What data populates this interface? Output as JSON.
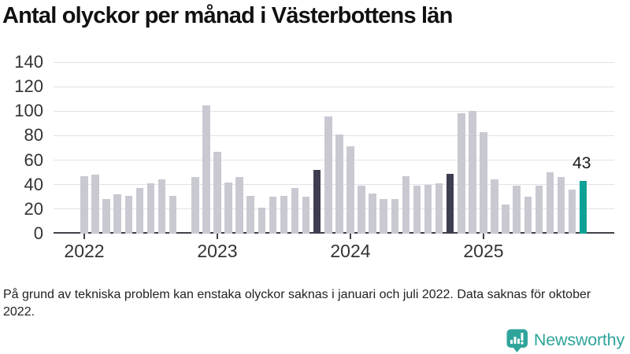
{
  "title": "Antal olyckor per månad i Västerbottens län",
  "footnote": "På grund av tekniska problem kan enstaka olyckor saknas i januari och juli 2022. Data saknas för oktober 2022.",
  "logo": {
    "name": "Newsworthy"
  },
  "colors": {
    "bar": "#c9c9d2",
    "bar_highlight": "#3e3e51",
    "bar_current": "#0ba195",
    "axis": "#3f4347",
    "gridline": "#e2e2e7",
    "text": "#1a1a1a",
    "logo_teal": "#2fa49b"
  },
  "chart_data": {
    "type": "bar",
    "title": "Antal olyckor per månad i Västerbottens län",
    "xlabel": "",
    "ylabel": "",
    "ylim": [
      0,
      140
    ],
    "y_ticks": [
      0,
      20,
      40,
      60,
      80,
      100,
      120,
      140
    ],
    "grid": "horizontal",
    "x_year_ticks": [
      "2022",
      "2023",
      "2024",
      "2025"
    ],
    "bar_label": {
      "text": "43",
      "month": "2025-10"
    },
    "months": [
      {
        "m": "2022-01",
        "v": 47,
        "c": "normal"
      },
      {
        "m": "2022-02",
        "v": 48,
        "c": "normal"
      },
      {
        "m": "2022-03",
        "v": 28,
        "c": "normal"
      },
      {
        "m": "2022-04",
        "v": 32,
        "c": "normal"
      },
      {
        "m": "2022-05",
        "v": 31,
        "c": "normal"
      },
      {
        "m": "2022-06",
        "v": 37,
        "c": "normal"
      },
      {
        "m": "2022-07",
        "v": 41,
        "c": "normal"
      },
      {
        "m": "2022-08",
        "v": 44,
        "c": "normal"
      },
      {
        "m": "2022-09",
        "v": 31,
        "c": "normal"
      },
      {
        "m": "2022-10",
        "v": null,
        "c": "missing"
      },
      {
        "m": "2022-11",
        "v": 46,
        "c": "normal"
      },
      {
        "m": "2022-12",
        "v": 105,
        "c": "normal"
      },
      {
        "m": "2023-01",
        "v": 67,
        "c": "normal"
      },
      {
        "m": "2023-02",
        "v": 42,
        "c": "normal"
      },
      {
        "m": "2023-03",
        "v": 46,
        "c": "normal"
      },
      {
        "m": "2023-04",
        "v": 31,
        "c": "normal"
      },
      {
        "m": "2023-05",
        "v": 21,
        "c": "normal"
      },
      {
        "m": "2023-06",
        "v": 30,
        "c": "normal"
      },
      {
        "m": "2023-07",
        "v": 31,
        "c": "normal"
      },
      {
        "m": "2023-08",
        "v": 37,
        "c": "normal"
      },
      {
        "m": "2023-09",
        "v": 30,
        "c": "normal"
      },
      {
        "m": "2023-10",
        "v": 52,
        "c": "highlight"
      },
      {
        "m": "2023-11",
        "v": 96,
        "c": "normal"
      },
      {
        "m": "2023-12",
        "v": 81,
        "c": "normal"
      },
      {
        "m": "2024-01",
        "v": 71,
        "c": "normal"
      },
      {
        "m": "2024-02",
        "v": 39,
        "c": "normal"
      },
      {
        "m": "2024-03",
        "v": 33,
        "c": "normal"
      },
      {
        "m": "2024-04",
        "v": 28,
        "c": "normal"
      },
      {
        "m": "2024-05",
        "v": 28,
        "c": "normal"
      },
      {
        "m": "2024-06",
        "v": 47,
        "c": "normal"
      },
      {
        "m": "2024-07",
        "v": 39,
        "c": "normal"
      },
      {
        "m": "2024-08",
        "v": 40,
        "c": "normal"
      },
      {
        "m": "2024-09",
        "v": 41,
        "c": "normal"
      },
      {
        "m": "2024-10",
        "v": 49,
        "c": "highlight"
      },
      {
        "m": "2024-11",
        "v": 98,
        "c": "normal"
      },
      {
        "m": "2024-12",
        "v": 100,
        "c": "normal"
      },
      {
        "m": "2025-01",
        "v": 83,
        "c": "normal"
      },
      {
        "m": "2025-02",
        "v": 44,
        "c": "normal"
      },
      {
        "m": "2025-03",
        "v": 24,
        "c": "normal"
      },
      {
        "m": "2025-04",
        "v": 39,
        "c": "normal"
      },
      {
        "m": "2025-05",
        "v": 30,
        "c": "normal"
      },
      {
        "m": "2025-06",
        "v": 39,
        "c": "normal"
      },
      {
        "m": "2025-07",
        "v": 50,
        "c": "normal"
      },
      {
        "m": "2025-08",
        "v": 46,
        "c": "normal"
      },
      {
        "m": "2025-09",
        "v": 36,
        "c": "normal"
      },
      {
        "m": "2025-10",
        "v": 43,
        "c": "current"
      }
    ]
  }
}
